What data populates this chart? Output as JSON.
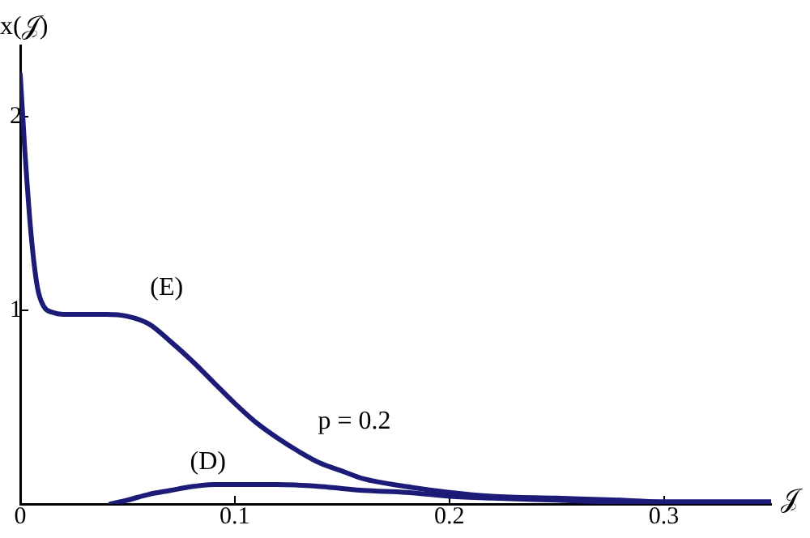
{
  "chart_data": {
    "type": "line",
    "xlabel": "𝒥",
    "ylabel": "x(𝒥)",
    "series": [
      {
        "color": "#1c1c78",
        "x": [
          0,
          0.002,
          0.005,
          0.008,
          0.011,
          0.015,
          0.02,
          0.03,
          0.04,
          0.05,
          0.06,
          0.07,
          0.08,
          0.09,
          0.1,
          0.11,
          0.12,
          0.13,
          0.14,
          0.15,
          0.16,
          0.18,
          0.2,
          0.22,
          0.25,
          0.28,
          0.3,
          0.33,
          0.35
        ],
        "values": [
          2.22,
          1.85,
          1.4,
          1.12,
          1.02,
          0.99,
          0.98,
          0.98,
          0.98,
          0.97,
          0.93,
          0.84,
          0.74,
          0.63,
          0.52,
          0.42,
          0.34,
          0.27,
          0.21,
          0.17,
          0.13,
          0.09,
          0.06,
          0.04,
          0.03,
          0.02,
          0.01,
          0.01,
          0.01
        ]
      },
      {
        "color": "#1c1c78",
        "x": [
          0.042,
          0.05,
          0.06,
          0.07,
          0.08,
          0.09,
          0.1,
          0.11,
          0.12,
          0.14,
          0.16,
          0.18,
          0.2,
          0.22,
          0.25,
          0.28,
          0.3,
          0.33,
          0.35
        ],
        "values": [
          0,
          0.02,
          0.05,
          0.07,
          0.09,
          0.1,
          0.1,
          0.1,
          0.1,
          0.09,
          0.07,
          0.06,
          0.04,
          0.03,
          0.02,
          0.01,
          0.01,
          0.01,
          0.01
        ]
      }
    ],
    "xlim": [
      0,
      0.35
    ],
    "ylim": [
      0,
      2.37
    ],
    "xticks": [
      0,
      0.1,
      0.2,
      0.3
    ],
    "yticks": [
      1,
      2
    ],
    "grid": false,
    "legend": false,
    "marker": "none",
    "line_style": "solid",
    "annotations": [
      "(E)",
      "(D)",
      "p = 0.2"
    ]
  }
}
